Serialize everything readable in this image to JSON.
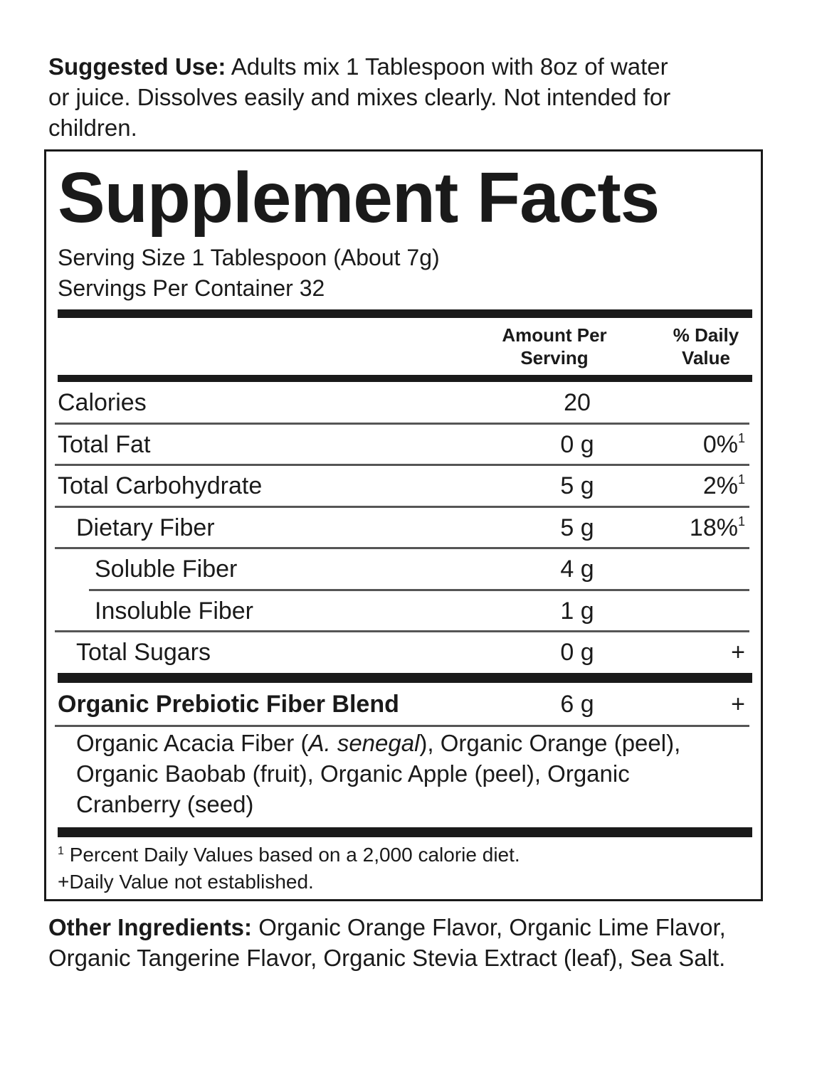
{
  "suggested_use": {
    "label": "Suggested Use:",
    "text": "Adults mix 1 Tablespoon with 8oz of water or juice. Dissolves easily and mixes clearly. Not intended for children."
  },
  "facts": {
    "title": "Supplement Facts",
    "serving_size": "Serving Size 1 Tablespoon (About 7g)",
    "servings_per_container": "Servings Per Container 32",
    "columns": [
      "Amount Per Serving",
      "% Daily Value"
    ],
    "rows": [
      {
        "name": "Calories",
        "amount": "20"
      },
      {
        "name": "Total Fat",
        "amount": "0 g",
        "dv": "0%",
        "dv_note": "1"
      },
      {
        "name": "Total Carbohydrate",
        "amount": "5 g",
        "dv": "2%",
        "dv_note": "1"
      },
      {
        "name": "Dietary Fiber",
        "amount": "5 g",
        "dv": "18%",
        "dv_note": "1"
      },
      {
        "name": "Soluble Fiber",
        "amount": "4 g"
      },
      {
        "name": "Insoluble Fiber",
        "amount": "1 g"
      },
      {
        "name": "Total Sugars",
        "amount": "0 g",
        "dv": "+"
      }
    ],
    "blend": {
      "name": "Organic Prebiotic Fiber Blend",
      "amount": "6 g",
      "dv": "+",
      "ingredients": [
        "Organic Acacia Fiber (",
        "A. senegal",
        "), Organic Orange (peel), Organic Baobab (fruit), Organic Apple (peel), Organic Cranberry (seed)"
      ]
    },
    "footnotes": [
      {
        "mark": "1",
        "text": "Percent Daily Values based on a 2,000 calorie diet."
      },
      {
        "mark": "+",
        "text": "Daily Value not established."
      }
    ]
  },
  "other_ingredients": {
    "label": "Other Ingredients:",
    "text": "Organic Orange Flavor, Organic Lime Flavor, Organic Tangerine Flavor, Organic Stevia Extract (leaf), Sea Salt."
  }
}
